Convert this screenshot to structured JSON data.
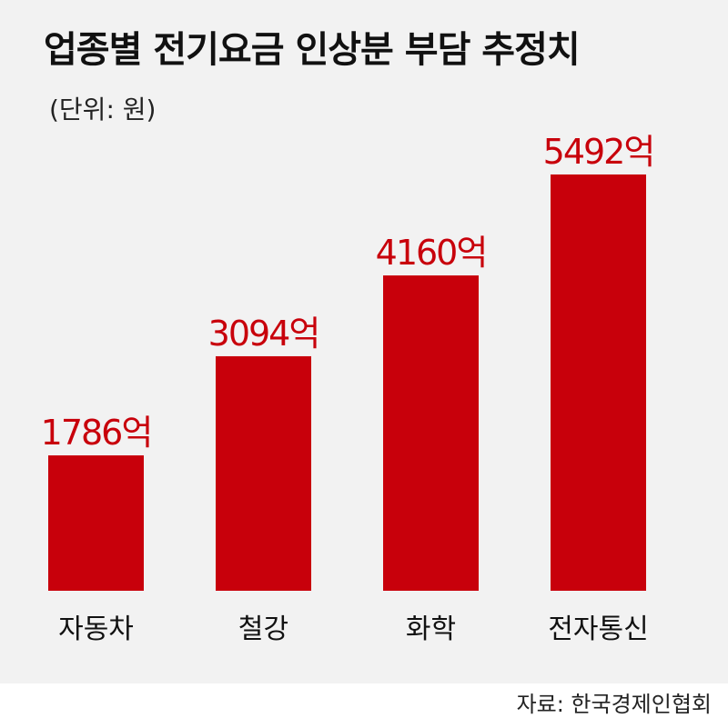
{
  "chart_data": {
    "type": "bar",
    "title": "업종별 전기요금 인상분 부담 추정치",
    "subtitle": "(단위: 원)",
    "categories": [
      "자동차",
      "철강",
      "화학",
      "전자통신"
    ],
    "values": [
      1786,
      3094,
      4160,
      5492
    ],
    "value_labels": [
      "1786억",
      "3094억",
      "4160억",
      "5492억"
    ],
    "color": "#c8000b",
    "source": "자료: 한국경제인협회"
  }
}
